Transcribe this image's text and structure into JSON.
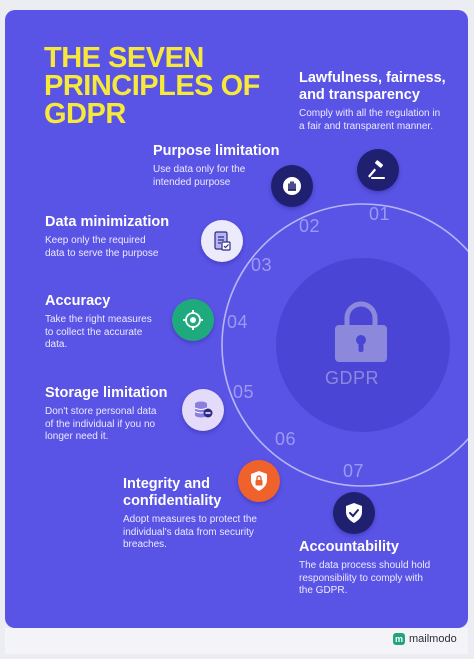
{
  "title_lines": [
    "THE SEVEN",
    "PRINCIPLES OF",
    "GDPR"
  ],
  "center_label": "GDPR",
  "principles": [
    {
      "number": "01",
      "title_lines": [
        "Lawfulness, fairness,",
        "and transparency"
      ],
      "desc_lines": [
        "Comply with all the regulation in",
        "a fair and transparent manner."
      ],
      "icon": "gavel-icon",
      "icon_bg": "#1f2070"
    },
    {
      "number": "02",
      "title_lines": [
        "Purpose limitation"
      ],
      "desc_lines": [
        "Use data only for the",
        "intended purpose"
      ],
      "icon": "hand-stop-icon",
      "icon_bg": "#1f2070"
    },
    {
      "number": "03",
      "title_lines": [
        "Data minimization"
      ],
      "desc_lines": [
        "Keep only the required",
        "data to serve the purpose"
      ],
      "icon": "document-check-icon",
      "icon_bg": "#ecebfb"
    },
    {
      "number": "04",
      "title_lines": [
        "Accuracy"
      ],
      "desc_lines": [
        "Take the right measures",
        "to collect the accurate",
        "data."
      ],
      "icon": "target-icon",
      "icon_bg": "#1faa7e"
    },
    {
      "number": "05",
      "title_lines": [
        "Storage limitation"
      ],
      "desc_lines": [
        "Don't store personal data",
        "of the individual if you no",
        "longer need it."
      ],
      "icon": "database-minus-icon",
      "icon_bg": "#e4dbfa"
    },
    {
      "number": "06",
      "title_lines": [
        "Integrity and",
        "confidentiality"
      ],
      "desc_lines": [
        "Adopt measures to protect the",
        "individual's data from security",
        "breaches."
      ],
      "icon": "shield-lock-icon",
      "icon_bg": "#f0622b"
    },
    {
      "number": "07",
      "title_lines": [
        "Accountability"
      ],
      "desc_lines": [
        "The data process should hold",
        "responsibility to comply with",
        "the GDPR."
      ],
      "icon": "shield-check-icon",
      "icon_bg": "#1f2070"
    }
  ],
  "footer": {
    "brand": "mailmodo",
    "brand_color": "#1ea67a"
  },
  "colors": {
    "background": "#5a54e6",
    "title": "#f7e93a",
    "number": "#9c99f2",
    "ring": "#b7b4f5"
  }
}
